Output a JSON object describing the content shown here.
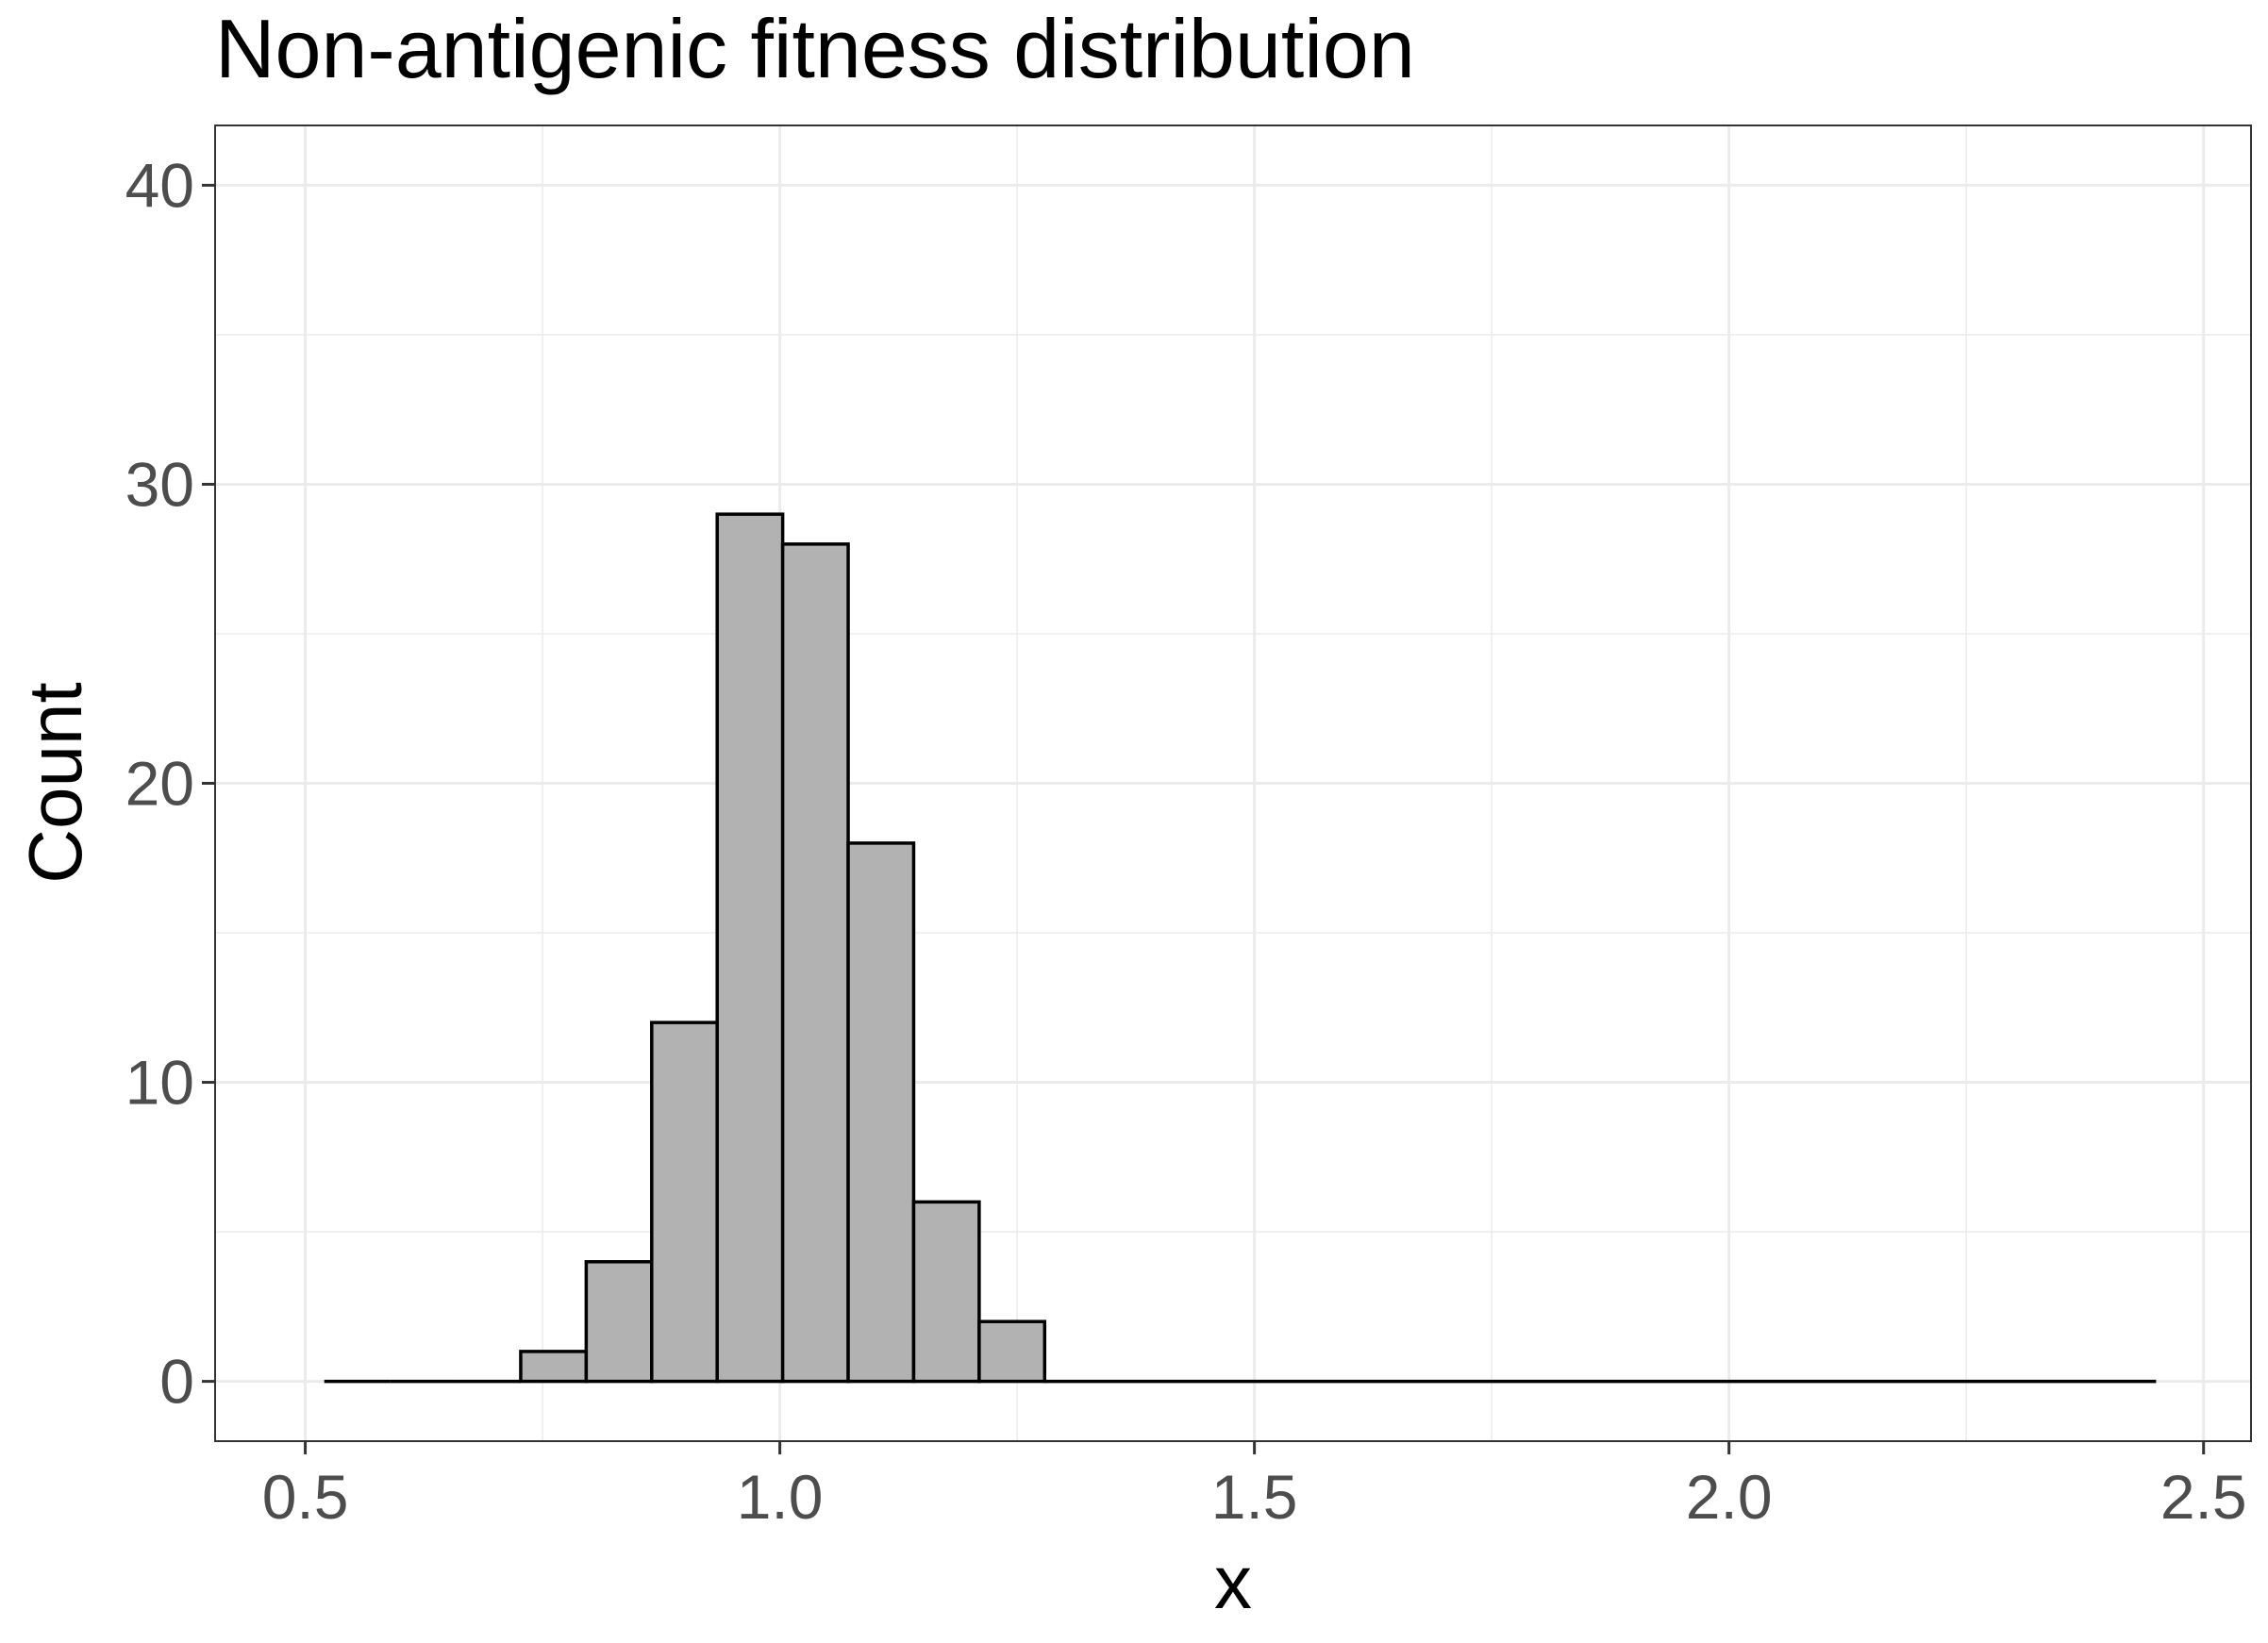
{
  "chart_data": {
    "type": "bar",
    "title": "Non-antigenic fitness distribution",
    "xlabel": "x",
    "ylabel": "Count",
    "xlim": [
      0.405,
      2.55
    ],
    "ylim": [
      -2,
      42
    ],
    "x_ticks": [
      0.5,
      1.0,
      1.5,
      2.0,
      2.5
    ],
    "x_tick_labels": [
      "0.5",
      "1.0",
      "1.5",
      "2.0",
      "2.5"
    ],
    "y_ticks": [
      0,
      10,
      20,
      30,
      40
    ],
    "y_tick_labels": [
      "0",
      "10",
      "20",
      "30",
      "40"
    ],
    "grid": true,
    "bin_width": 0.069,
    "bins": [
      {
        "x0": 0.52,
        "x1": 0.589,
        "count": 0
      },
      {
        "x0": 0.589,
        "x1": 0.658,
        "count": 0
      },
      {
        "x0": 0.658,
        "x1": 0.727,
        "count": 0
      },
      {
        "x0": 0.727,
        "x1": 0.796,
        "count": 1
      },
      {
        "x0": 0.796,
        "x1": 0.865,
        "count": 4
      },
      {
        "x0": 0.865,
        "x1": 0.934,
        "count": 12
      },
      {
        "x0": 0.934,
        "x1": 1.003,
        "count": 29
      },
      {
        "x0": 1.003,
        "x1": 1.072,
        "count": 28
      },
      {
        "x0": 1.072,
        "x1": 1.141,
        "count": 18
      },
      {
        "x0": 1.141,
        "x1": 1.21,
        "count": 6
      },
      {
        "x0": 1.21,
        "x1": 1.279,
        "count": 2
      },
      {
        "x0": 1.279,
        "x1": 2.45,
        "count": 0
      }
    ],
    "bar_fill": "#b2b2b2",
    "bar_stroke": "#000000",
    "grid_color": "#ebebeb"
  }
}
